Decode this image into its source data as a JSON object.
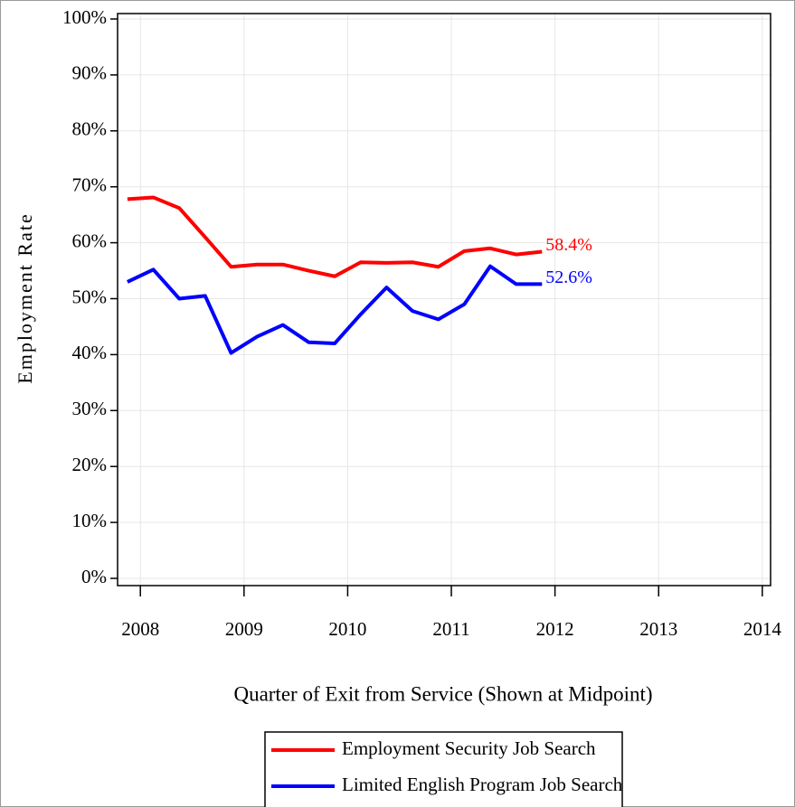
{
  "chart_data": {
    "type": "line",
    "x_label": "Quarter of Exit from Service (Shown at Midpoint)",
    "y_label": "Employment Rate",
    "x": [
      2007.875,
      2008.125,
      2008.375,
      2008.625,
      2008.875,
      2009.125,
      2009.375,
      2009.625,
      2009.875,
      2010.125,
      2010.375,
      2010.625,
      2010.875,
      2011.125,
      2011.375,
      2011.625,
      2011.875
    ],
    "series": [
      {
        "name": "Employment Security Job Search",
        "color": "#ff0000",
        "values": [
          67.8,
          68.1,
          66.2,
          61.0,
          55.7,
          56.1,
          56.1,
          55.0,
          54.0,
          56.5,
          56.4,
          56.5,
          55.7,
          58.5,
          59.0,
          57.9,
          58.4
        ],
        "value_labels": [
          null,
          null,
          null,
          null,
          null,
          null,
          null,
          null,
          null,
          null,
          null,
          null,
          null,
          null,
          null,
          null,
          "58.4%"
        ]
      },
      {
        "name": "Limited English Program Job Search",
        "color": "#0000ff",
        "values": [
          53.0,
          55.2,
          50.0,
          50.5,
          40.3,
          43.2,
          45.3,
          42.2,
          42.0,
          47.2,
          52.0,
          47.8,
          46.3,
          49.0,
          55.8,
          52.6,
          52.6
        ],
        "value_labels": [
          null,
          null,
          null,
          null,
          null,
          null,
          null,
          null,
          null,
          null,
          null,
          null,
          null,
          null,
          null,
          null,
          "52.6%"
        ]
      }
    ],
    "xlim": [
      2007.78,
      2014.08
    ],
    "xticks": [
      2008,
      2009,
      2010,
      2011,
      2012,
      2013,
      2014
    ],
    "ylim": [
      0,
      100
    ],
    "yticks": [
      {
        "value": 0,
        "label": "0%"
      },
      {
        "value": 10,
        "label": "10%"
      },
      {
        "value": 20,
        "label": "20%"
      },
      {
        "value": 30,
        "label": "30%"
      },
      {
        "value": 40,
        "label": "40%"
      },
      {
        "value": 50,
        "label": "50%"
      },
      {
        "value": 60,
        "label": "60%"
      },
      {
        "value": 70,
        "label": "70%"
      },
      {
        "value": 80,
        "label": "80%"
      },
      {
        "value": 90,
        "label": "90%"
      },
      {
        "value": 100,
        "label": "100%"
      }
    ],
    "grid": true
  }
}
